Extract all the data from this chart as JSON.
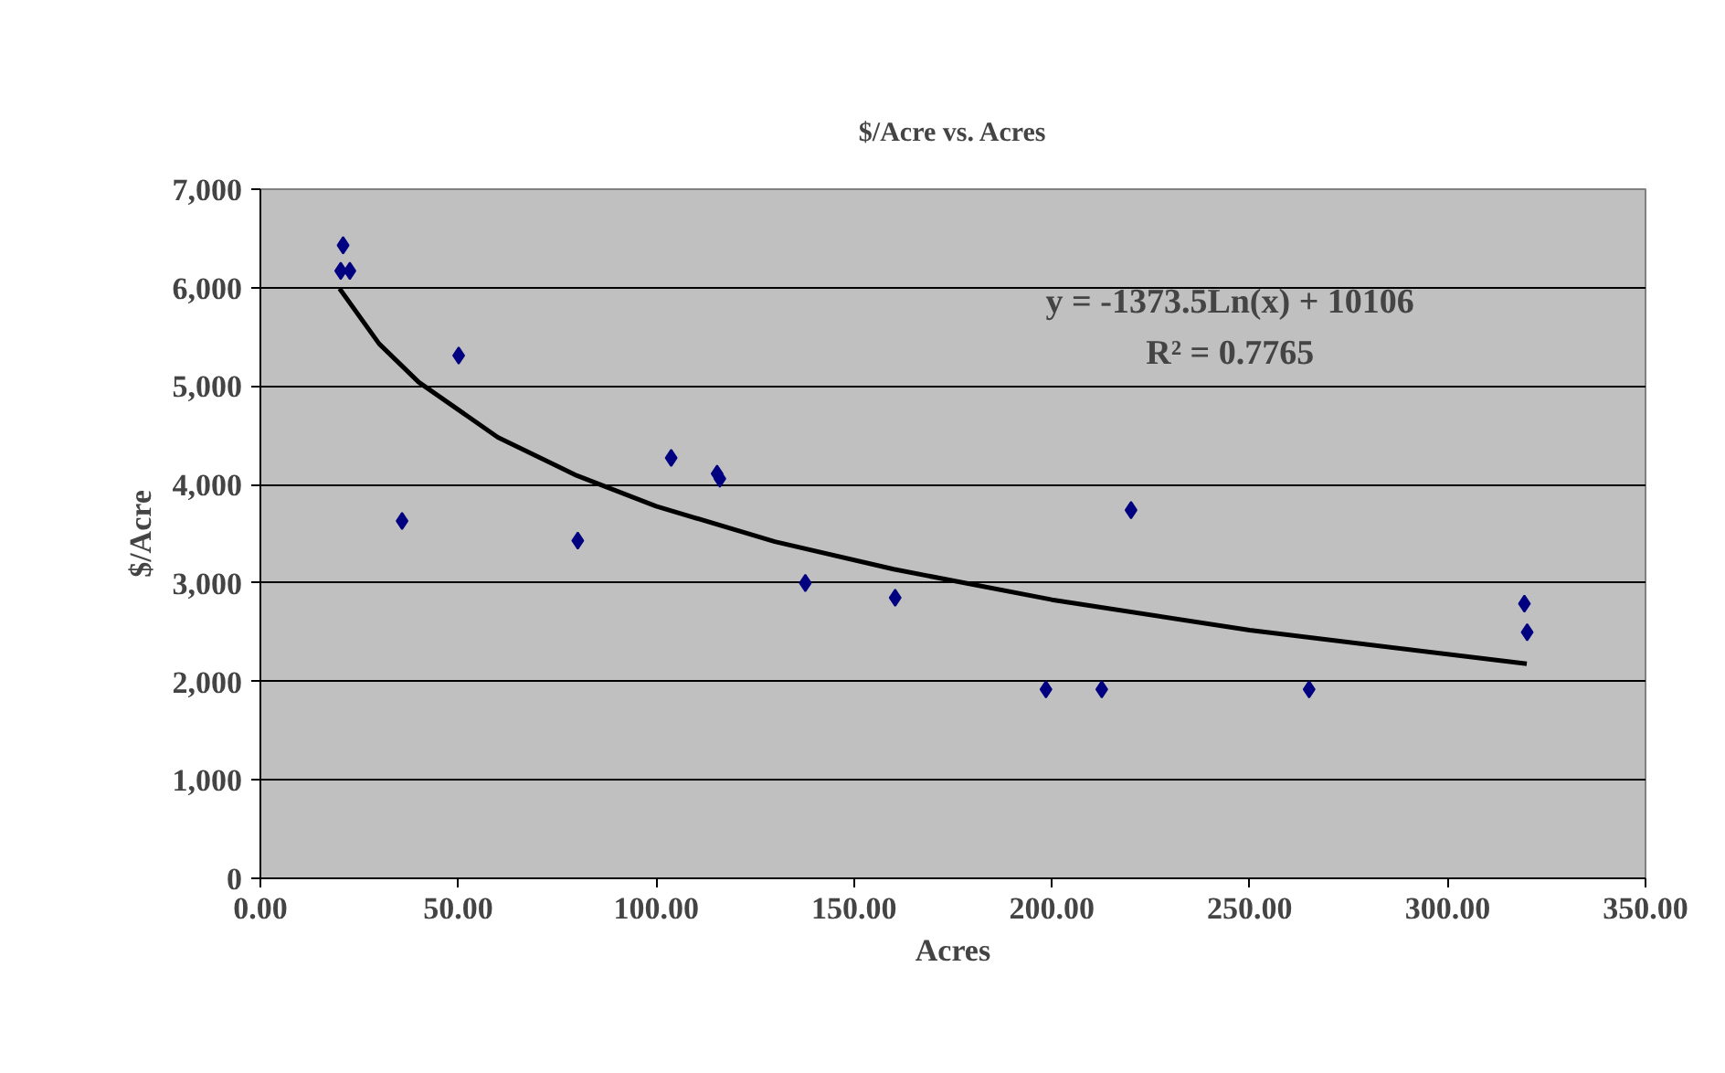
{
  "chart_data": {
    "type": "scatter",
    "title": "$/Acre vs. Acres",
    "xlabel": "Acres",
    "ylabel": "$/Acre",
    "xlim": [
      0,
      350
    ],
    "ylim": [
      0,
      7000
    ],
    "xticks": [
      {
        "value": 0,
        "label": "0.00"
      },
      {
        "value": 50,
        "label": "50.00"
      },
      {
        "value": 100,
        "label": "100.00"
      },
      {
        "value": 150,
        "label": "150.00"
      },
      {
        "value": 200,
        "label": "200.00"
      },
      {
        "value": 250,
        "label": "250.00"
      },
      {
        "value": 300,
        "label": "300.00"
      },
      {
        "value": 350,
        "label": "350.00"
      }
    ],
    "yticks": [
      0,
      {
        "value": 1000,
        "label": "1,000"
      },
      {
        "value": 2000,
        "label": "2,000"
      },
      {
        "value": 3000,
        "label": "3,000"
      },
      {
        "value": 4000,
        "label": "4,000"
      },
      {
        "value": 5000,
        "label": "5,000"
      },
      {
        "value": 6000,
        "label": "6,000"
      },
      {
        "value": 7000,
        "label": "7,000"
      }
    ],
    "grid": "y",
    "series": [
      {
        "marker": "diamond",
        "color": "#000080",
        "x": [
          20.9,
          20.3,
          22.6,
          35.8,
          50.1,
          80.2,
          103.8,
          115.4,
          116.1,
          137.7,
          160.4,
          198.5,
          212.6,
          220,
          265,
          319.4,
          320.1
        ],
        "values": [
          6430,
          6170,
          6170,
          3630,
          5310,
          3430,
          4270,
          4110,
          4060,
          3000,
          2850,
          1920,
          1920,
          3740,
          1920,
          2790,
          2500
        ]
      },
      {
        "type": "line",
        "color": "#000000",
        "line_style": "solid",
        "x": [
          20,
          30,
          40,
          60,
          80,
          100,
          130,
          160,
          200,
          250,
          320
        ],
        "values": [
          5990,
          5430,
          5040,
          4480,
          4090,
          3780,
          3420,
          3140,
          2830,
          2520,
          2180
        ]
      }
    ],
    "annotations": [
      "y = -1373.5Ln(x) + 10106",
      "R² = 0.7765"
    ]
  }
}
